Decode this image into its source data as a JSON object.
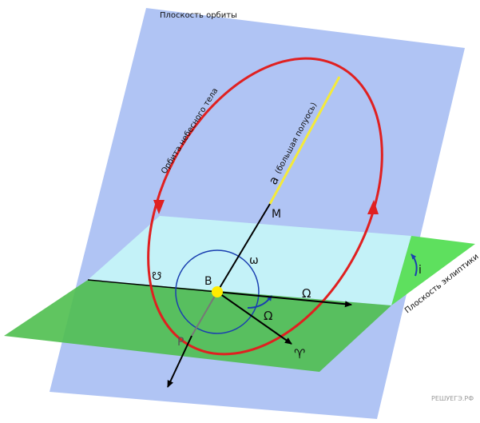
{
  "labels": {
    "orbit_plane": "Плоскость орбиты",
    "orbit": "Орбита небесного тела",
    "semi_major": "a",
    "semi_major_note": "(большая полуось)",
    "m": "M",
    "omega_small": "ω",
    "b": "B",
    "omega_big_line": "Ω",
    "omega_big_angle": "Ω",
    "descending_node": "☋",
    "p": "P",
    "aries": "♈",
    "inclination": "i",
    "ecliptic_plane": "Плоскость эклиптики",
    "watermark": "РЕШУЕГЭ.РФ"
  }
}
